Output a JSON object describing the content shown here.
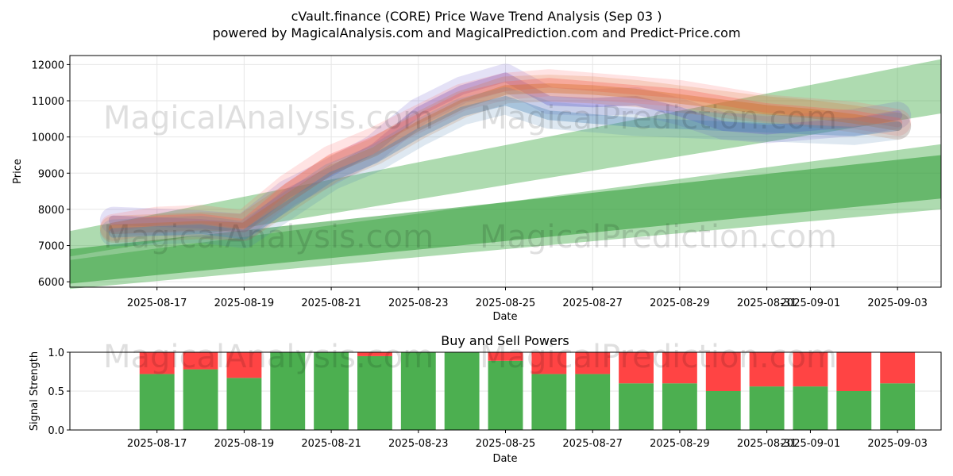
{
  "title": "cVault.finance (CORE) Price Wave Trend Analysis (Sep 03 )",
  "subtitle": "powered by MagicalAnalysis.com and MagicalPrediction.com and Predict-Price.com",
  "watermarks": {
    "left": "MagicalAnalysis.com",
    "right": "MagicalPrediction.com"
  },
  "chart_data": [
    {
      "type": "area",
      "xlabel": "Date",
      "ylabel": "Price",
      "x_tick_labels": [
        "2025-08-17",
        "2025-08-19",
        "2025-08-21",
        "2025-08-23",
        "2025-08-25",
        "2025-08-27",
        "2025-08-29",
        "2025-08-31",
        "2025-09-01",
        "2025-09-03"
      ],
      "x_tick_dates": [
        "2025-08-17",
        "2025-08-19",
        "2025-08-21",
        "2025-08-23",
        "2025-08-25",
        "2025-08-27",
        "2025-08-29",
        "2025-08-31",
        "2025-09-01",
        "2025-09-03"
      ],
      "x_range": [
        "2025-08-15",
        "2025-09-04"
      ],
      "yticks": [
        6000,
        7000,
        8000,
        9000,
        10000,
        11000,
        12000
      ],
      "ylim": [
        5850,
        12250
      ],
      "grid": true,
      "price_series": [
        {
          "color": "#6a5acd",
          "x": [
            "2025-08-16",
            "2025-08-17",
            "2025-08-18",
            "2025-08-19",
            "2025-08-20",
            "2025-08-21",
            "2025-08-22",
            "2025-08-23",
            "2025-08-24",
            "2025-08-25",
            "2025-08-26",
            "2025-08-27",
            "2025-08-28",
            "2025-08-29",
            "2025-08-30",
            "2025-08-31",
            "2025-09-01",
            "2025-09-02",
            "2025-09-03"
          ],
          "y": [
            7700,
            7650,
            7600,
            7500,
            8450,
            9050,
            9700,
            10700,
            11300,
            11650,
            11000,
            10950,
            11000,
            10700,
            10300,
            10200,
            10300,
            10400,
            10600
          ]
        },
        {
          "color": "#ff6666",
          "x": [
            "2025-08-16",
            "2025-08-17",
            "2025-08-18",
            "2025-08-19",
            "2025-08-20",
            "2025-08-21",
            "2025-08-22",
            "2025-08-23",
            "2025-08-24",
            "2025-08-25",
            "2025-08-26",
            "2025-08-27",
            "2025-08-28",
            "2025-08-29",
            "2025-08-30",
            "2025-08-31",
            "2025-09-01",
            "2025-09-02",
            "2025-09-03"
          ],
          "y": [
            7500,
            7700,
            7750,
            7600,
            8600,
            9400,
            9900,
            10500,
            11100,
            11400,
            11500,
            11400,
            11300,
            11200,
            11000,
            10800,
            10700,
            10600,
            10400
          ]
        },
        {
          "color": "#d2691e",
          "x": [
            "2025-08-16",
            "2025-08-17",
            "2025-08-18",
            "2025-08-19",
            "2025-08-20",
            "2025-08-21",
            "2025-08-22",
            "2025-08-23",
            "2025-08-24",
            "2025-08-25",
            "2025-08-26",
            "2025-08-27",
            "2025-08-28",
            "2025-08-29",
            "2025-08-30",
            "2025-08-31",
            "2025-09-01",
            "2025-09-02",
            "2025-09-03"
          ],
          "y": [
            7450,
            7500,
            7550,
            7500,
            8300,
            9100,
            9600,
            10300,
            10900,
            11300,
            11350,
            11300,
            11200,
            11050,
            10900,
            10750,
            10650,
            10500,
            10300
          ]
        },
        {
          "color": "#4682b4",
          "x": [
            "2025-08-16",
            "2025-08-17",
            "2025-08-18",
            "2025-08-19",
            "2025-08-20",
            "2025-08-21",
            "2025-08-22",
            "2025-08-23",
            "2025-08-24",
            "2025-08-25",
            "2025-08-26",
            "2025-08-27",
            "2025-08-28",
            "2025-08-29",
            "2025-08-30",
            "2025-08-31",
            "2025-09-01",
            "2025-09-02",
            "2025-09-03"
          ],
          "y": [
            7350,
            7400,
            7450,
            7300,
            8100,
            8900,
            9400,
            10100,
            10700,
            11000,
            10600,
            10500,
            10400,
            10350,
            10300,
            10250,
            10200,
            10150,
            10300
          ]
        }
      ],
      "trend_bands": [
        {
          "color": "#4caf50",
          "opacity": 0.45,
          "x": [
            "2025-08-15",
            "2025-09-04"
          ],
          "upper": [
            7400,
            12150
          ],
          "lower": [
            6700,
            10650
          ]
        },
        {
          "color": "#4caf50",
          "opacity": 0.45,
          "x": [
            "2025-08-15",
            "2025-09-04"
          ],
          "upper": [
            6600,
            9800
          ],
          "lower": [
            5800,
            8000
          ]
        },
        {
          "color": "#2e9a35",
          "opacity": 0.55,
          "x": [
            "2025-08-15",
            "2025-09-04"
          ],
          "upper": [
            6900,
            9500
          ],
          "lower": [
            5950,
            8300
          ]
        }
      ]
    },
    {
      "type": "bar",
      "title": "Buy and Sell Powers",
      "xlabel": "Date",
      "ylabel": "Signal Strength",
      "ylim": [
        0,
        1
      ],
      "yticks": [
        "0.0",
        "0.5",
        "1.0"
      ],
      "x_tick_labels": [
        "2025-08-17",
        "2025-08-19",
        "2025-08-21",
        "2025-08-23",
        "2025-08-25",
        "2025-08-27",
        "2025-08-29",
        "2025-08-31",
        "2025-09-01",
        "2025-09-03"
      ],
      "x_tick_dates": [
        "2025-08-17",
        "2025-08-19",
        "2025-08-21",
        "2025-08-23",
        "2025-08-25",
        "2025-08-27",
        "2025-08-29",
        "2025-08-31",
        "2025-09-01",
        "2025-09-03"
      ],
      "x_range": [
        "2025-08-15",
        "2025-09-04"
      ],
      "categories": [
        "2025-08-17",
        "2025-08-18",
        "2025-08-19",
        "2025-08-20",
        "2025-08-21",
        "2025-08-22",
        "2025-08-23",
        "2025-08-24",
        "2025-08-25",
        "2025-08-26",
        "2025-08-27",
        "2025-08-28",
        "2025-08-29",
        "2025-08-30",
        "2025-08-31",
        "2025-09-01",
        "2025-09-02",
        "2025-09-03"
      ],
      "series": [
        {
          "color": "#4caf50",
          "values": [
            0.72,
            0.78,
            0.67,
            1.0,
            1.0,
            0.95,
            1.0,
            1.0,
            0.89,
            0.72,
            0.72,
            0.6,
            0.6,
            0.5,
            0.56,
            0.56,
            0.5,
            0.6
          ]
        },
        {
          "color": "#ff4444",
          "values": [
            0.28,
            0.22,
            0.33,
            0.0,
            0.0,
            0.05,
            0.0,
            0.0,
            0.11,
            0.28,
            0.28,
            0.4,
            0.4,
            0.5,
            0.44,
            0.44,
            0.5,
            0.4
          ]
        }
      ],
      "grid": true
    }
  ]
}
